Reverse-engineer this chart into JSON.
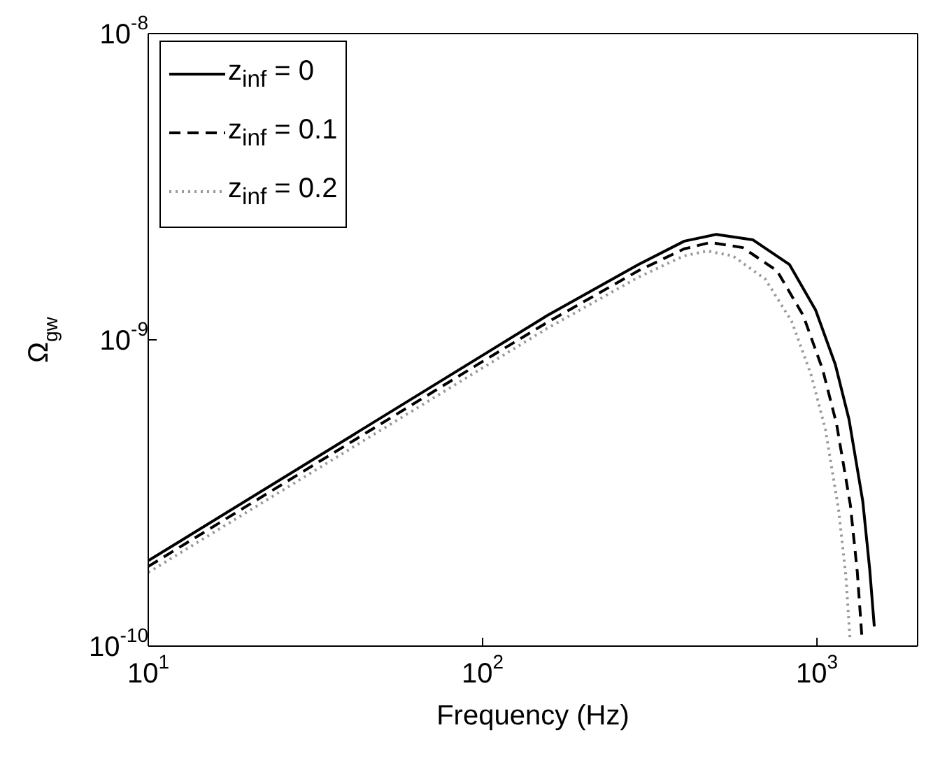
{
  "chart_data": {
    "type": "line",
    "xlabel": "Frequency (Hz)",
    "ylabel": "Ω$_{gw}$",
    "log": "xy",
    "legend": "top left",
    "xlim": [
      10,
      2000
    ],
    "ylim": [
      1e-10,
      1e-08
    ],
    "xticks": [
      {
        "value": 10,
        "label": "10$^{1}$"
      },
      {
        "value": 100,
        "label": "10$^{2}$"
      },
      {
        "value": 1000,
        "label": "10$^{3}$"
      }
    ],
    "yticks": [
      {
        "value": 1e-10,
        "label": "10$^{-10}$"
      },
      {
        "value": 1e-09,
        "label": "10$^{-9}$"
      },
      {
        "value": 1e-08,
        "label": "10$^{-8}$"
      }
    ],
    "series": [
      {
        "name": "z$_{inf}$ = 0",
        "color": "#000000",
        "line_style": "solid",
        "x": [
          10,
          100,
          156,
          292,
          401,
          500,
          644,
          828,
          991,
          1135,
          1247,
          1371,
          1438,
          1484
        ],
        "values": [
          1.9e-10,
          8.9e-10,
          1.2e-09,
          1.76e-09,
          2.1e-09,
          2.21e-09,
          2.12e-09,
          1.76e-09,
          1.25e-09,
          8.3e-10,
          5.5e-10,
          2.97e-10,
          1.78e-10,
          1.16e-10
        ]
      },
      {
        "name": "z$_{inf}$ = 0.1",
        "color": "#000000",
        "line_style": "dashed",
        "x": [
          10,
          100,
          156,
          292,
          400,
          480,
          600,
          760,
          910,
          1040,
          1145,
          1258,
          1320,
          1362
        ],
        "values": [
          1.82e-10,
          8.5e-10,
          1.14e-09,
          1.68e-09,
          1.98e-09,
          2.08e-09,
          2e-09,
          1.68e-09,
          1.2e-09,
          8e-10,
          5.3e-10,
          2.9e-10,
          1.75e-10,
          1.08e-10
        ]
      },
      {
        "name": "z$_{inf}$ = 0.2",
        "color": "#999999",
        "line_style": "dotted",
        "x": [
          10,
          100,
          156,
          292,
          400,
          470,
          560,
          700,
          840,
          960,
          1060,
          1160,
          1220,
          1256
        ],
        "values": [
          1.74e-10,
          8.1e-10,
          1.09e-09,
          1.6e-09,
          1.88e-09,
          1.95e-09,
          1.88e-09,
          1.58e-09,
          1.15e-09,
          7.7e-10,
          5.1e-10,
          2.8e-10,
          1.7e-10,
          1.05e-10
        ]
      }
    ]
  }
}
